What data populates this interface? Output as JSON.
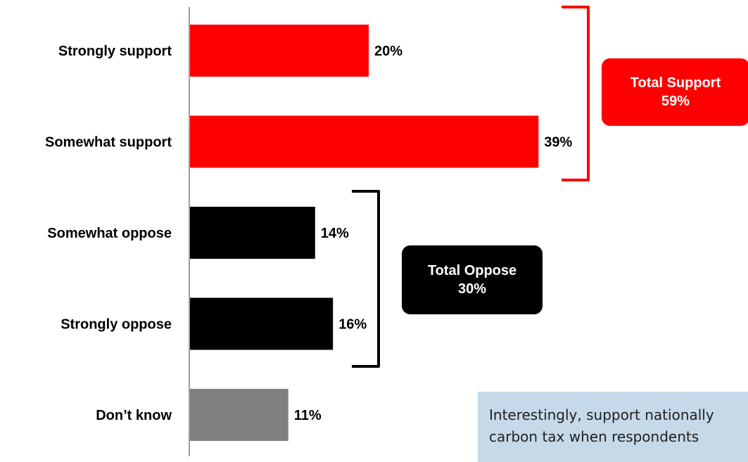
{
  "chart_data": {
    "type": "bar",
    "orientation": "horizontal",
    "categories": [
      "Strongly support",
      "Somewhat support",
      "Somewhat oppose",
      "Strongly oppose",
      "Don’t know"
    ],
    "values": [
      20,
      39,
      14,
      16,
      11
    ],
    "value_labels": [
      "20%",
      "39%",
      "14%",
      "16%",
      "11%"
    ],
    "colors": [
      "#ff0000",
      "#ff0000",
      "#000000",
      "#000000",
      "#808080"
    ],
    "title": "",
    "xlabel": "",
    "ylabel": "",
    "xlim": [
      0,
      45
    ],
    "grid": false,
    "legend": "none",
    "annotations": {
      "support": {
        "line1": "Total Support",
        "line2": "59%",
        "color": "#ff0000",
        "bracket_color": "#ff0000"
      },
      "oppose": {
        "line1": "Total Oppose",
        "line2": "30%",
        "color": "#000000",
        "bracket_color": "#000000"
      }
    }
  },
  "note": {
    "line1": "Interestingly, support nationally",
    "line2": "carbon tax when respondents",
    "background": "#c5d9e8"
  }
}
